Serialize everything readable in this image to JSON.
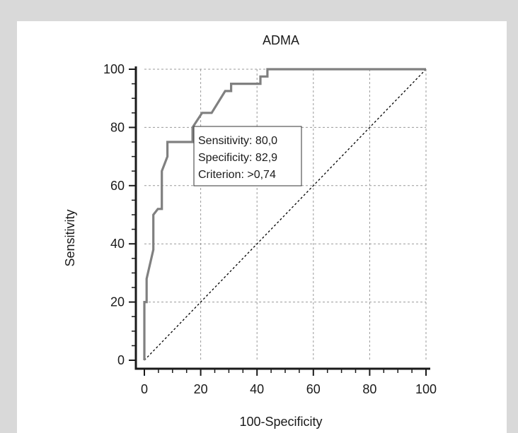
{
  "chart_data": {
    "type": "line",
    "title": "ADMA",
    "xlabel": "100-Specificity",
    "ylabel": "Sensitivity",
    "xlim": [
      0,
      100
    ],
    "ylim": [
      0,
      100
    ],
    "xticks": [
      0,
      20,
      40,
      60,
      80,
      100
    ],
    "yticks": [
      0,
      20,
      40,
      60,
      80,
      100
    ],
    "grid": true,
    "series": [
      {
        "color": "#808080",
        "x": [
          0,
          0,
          0.8,
          0.8,
          3.2,
          3.2,
          4.8,
          6.2,
          6.2,
          8.2,
          8.2,
          17.1,
          17.1,
          20.5,
          23.9,
          28.7,
          30.8,
          30.8,
          32.2,
          32.2,
          41.2,
          41.2,
          43.7,
          43.7,
          100
        ],
        "y": [
          0,
          20,
          20,
          28,
          38,
          50,
          52,
          52,
          65,
          70,
          75,
          75,
          80,
          85,
          85,
          92.5,
          92.5,
          95,
          95,
          95,
          95,
          97.5,
          97.5,
          100,
          100
        ]
      },
      {
        "style": "dotted",
        "color": "#000000",
        "x": [
          0,
          100
        ],
        "y": [
          0,
          100
        ]
      }
    ],
    "annotation": {
      "lines": [
        "Sensitivity: 80,0",
        "Specificity: 82,9",
        "Criterion: >0,74"
      ]
    }
  }
}
